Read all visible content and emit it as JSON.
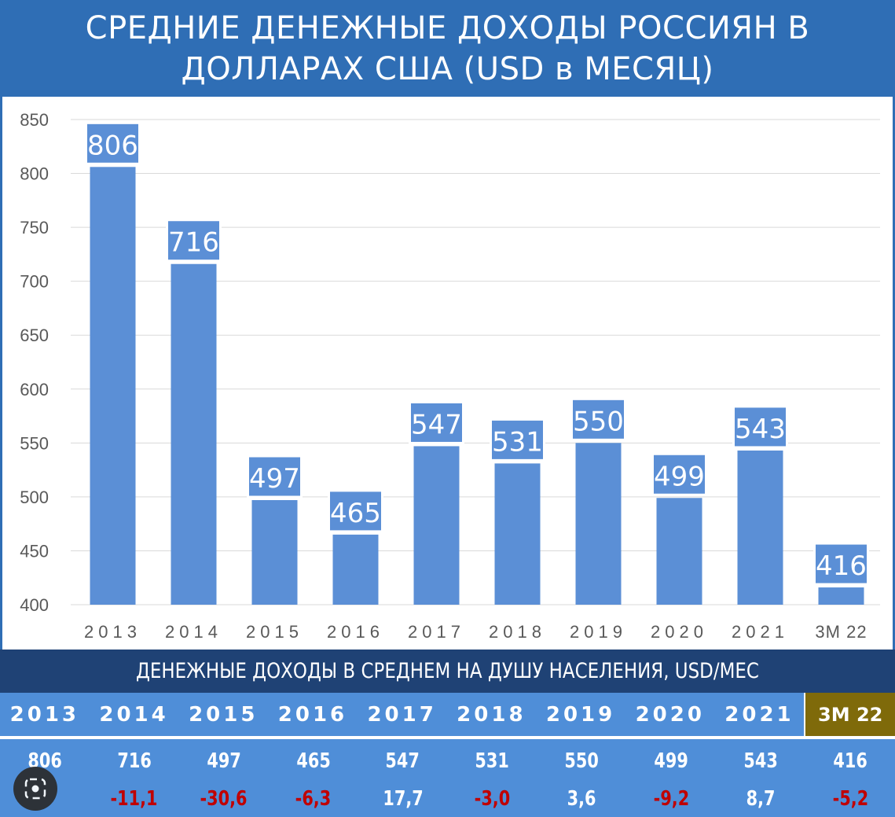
{
  "title": {
    "line1": "СРЕДНИЕ ДЕНЕЖНЫЕ ДОХОДЫ РОССИЯН В",
    "line2": "ДОЛЛАРАХ США (USD в МЕСЯЦ)"
  },
  "subtitle": "ДЕНЕЖНЫЕ ДОХОДЫ В СРЕДНЕМ НА ДУШУ НАСЕЛЕНИЯ, USD/МЕС",
  "colors": {
    "header_bg": "#2f6eb5",
    "bar": "#5b8fd6",
    "subtitle_bg": "#1f4275",
    "table_bg": "#4f8ed8",
    "highlight_bg": "#7f6a0a",
    "negative": "#c00000",
    "positive": "#ffffff"
  },
  "chart_data": {
    "type": "bar",
    "categories": [
      "2013",
      "2014",
      "2015",
      "2016",
      "2017",
      "2018",
      "2019",
      "2020",
      "2021",
      "3М 22"
    ],
    "values": [
      806,
      716,
      497,
      465,
      547,
      531,
      550,
      499,
      543,
      416
    ],
    "ylim": [
      400,
      850
    ],
    "yticks": [
      400,
      450,
      500,
      550,
      600,
      650,
      700,
      750,
      800,
      850
    ],
    "grid": true,
    "data_labels": true
  },
  "table": {
    "years": [
      "2013",
      "2014",
      "2015",
      "2016",
      "2017",
      "2018",
      "2019",
      "2020",
      "2021",
      "3М 22"
    ],
    "values": [
      "806",
      "716",
      "497",
      "465",
      "547",
      "531",
      "550",
      "499",
      "543",
      "416"
    ],
    "changes": [
      "",
      "-11,1",
      "-30,6",
      "-6,3",
      "17,7",
      "-3,0",
      "3,6",
      "-9,2",
      "8,7",
      "-5,2"
    ],
    "change_sign": [
      "",
      "neg",
      "neg",
      "neg",
      "pos",
      "neg",
      "pos",
      "neg",
      "pos",
      "neg"
    ]
  },
  "overlay_icon": "lens-search-icon"
}
